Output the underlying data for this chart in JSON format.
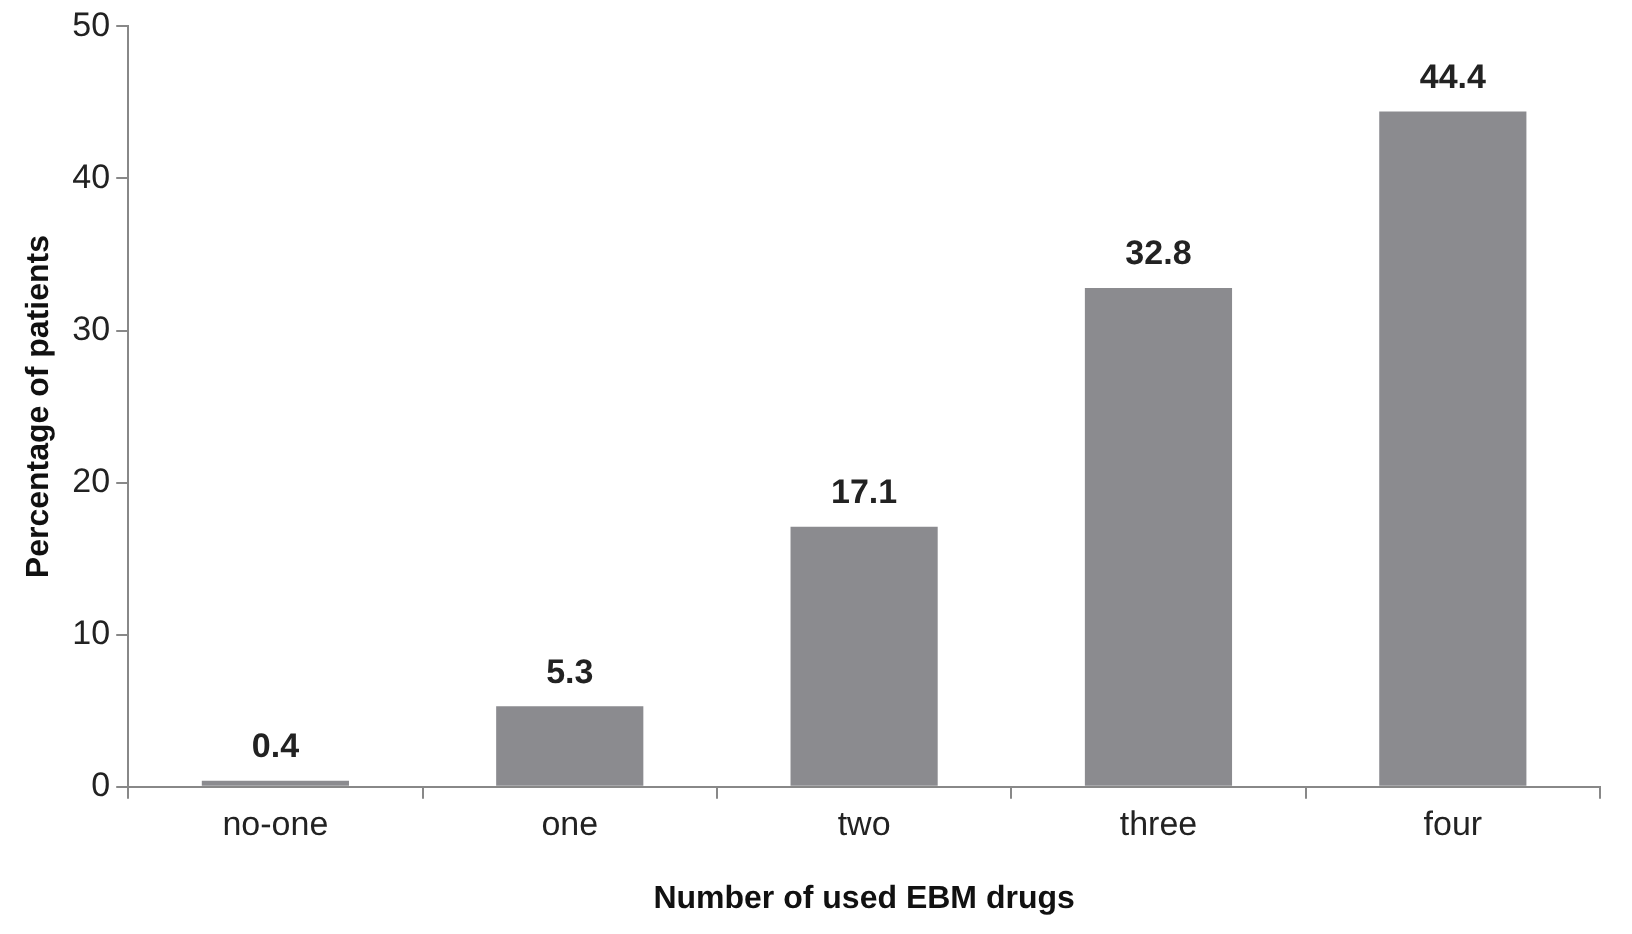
{
  "chart_data": {
    "type": "bar",
    "xlabel": "Number of used EBM drugs",
    "ylabel": "Percentage of patients",
    "categories": [
      "no-one",
      "one",
      "two",
      "three",
      "four"
    ],
    "values": [
      0.4,
      5.3,
      17.1,
      32.8,
      44.4
    ],
    "color": "#8b8b8f",
    "ylim": [
      0,
      50
    ],
    "yticks": [
      0,
      10,
      20,
      30,
      40,
      50
    ],
    "grid": false,
    "legend": false,
    "data_labels": true
  }
}
